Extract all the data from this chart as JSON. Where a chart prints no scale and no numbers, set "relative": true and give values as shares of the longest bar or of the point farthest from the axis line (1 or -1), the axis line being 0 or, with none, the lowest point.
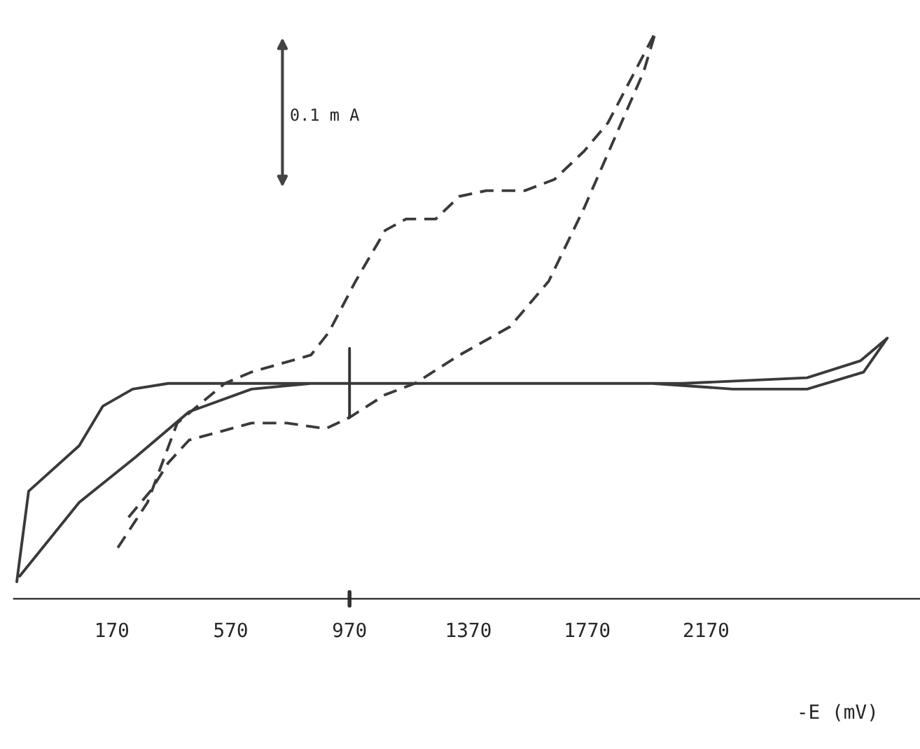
{
  "chart_data": {
    "type": "line",
    "relative": true,
    "xlabel": "-E (mV)",
    "annotations": [
      "0.1 m A"
    ],
    "xlim": [
      -160,
      2890
    ],
    "xticks": [
      170,
      570,
      970,
      1370,
      1770,
      2170
    ],
    "ref_lines": [
      {
        "axis": "x",
        "value": 970,
        "color": "#333333"
      }
    ],
    "grid": false,
    "marker": "none",
    "series": [
      {
        "color": "#3a3a3a",
        "line_style": "solid",
        "x": [
          -150,
          -110,
          60,
          140,
          240,
          360,
          970,
          2090,
          2510,
          2690,
          2780,
          2700,
          2510,
          2260,
          1990,
          970,
          840,
          640,
          430,
          250,
          60,
          -140
        ],
        "values": [
          0.03,
          0.19,
          0.27,
          0.34,
          0.37,
          0.38,
          0.38,
          0.38,
          0.39,
          0.42,
          0.46,
          0.4,
          0.37,
          0.37,
          0.38,
          0.38,
          0.38,
          0.37,
          0.33,
          0.25,
          0.17,
          0.04
        ]
      },
      {
        "color": "#3a3a3a",
        "line_style": "dashed",
        "x": [
          190,
          290,
          390,
          550,
          640,
          840,
          900,
          990,
          1090,
          1160,
          1260,
          1340,
          1430,
          1560,
          1660,
          1760,
          1840,
          1930,
          2000,
          1960,
          1860,
          1760,
          1640,
          1510,
          1340,
          1190,
          1090,
          970,
          890,
          760,
          640,
          430,
          360,
          300,
          220
        ],
        "values": [
          0.09,
          0.17,
          0.31,
          0.38,
          0.4,
          0.43,
          0.47,
          0.56,
          0.65,
          0.67,
          0.67,
          0.71,
          0.72,
          0.72,
          0.74,
          0.79,
          0.84,
          0.93,
          1.0,
          0.93,
          0.81,
          0.69,
          0.56,
          0.48,
          0.43,
          0.38,
          0.36,
          0.32,
          0.3,
          0.31,
          0.31,
          0.28,
          0.24,
          0.19,
          0.14
        ]
      }
    ]
  }
}
